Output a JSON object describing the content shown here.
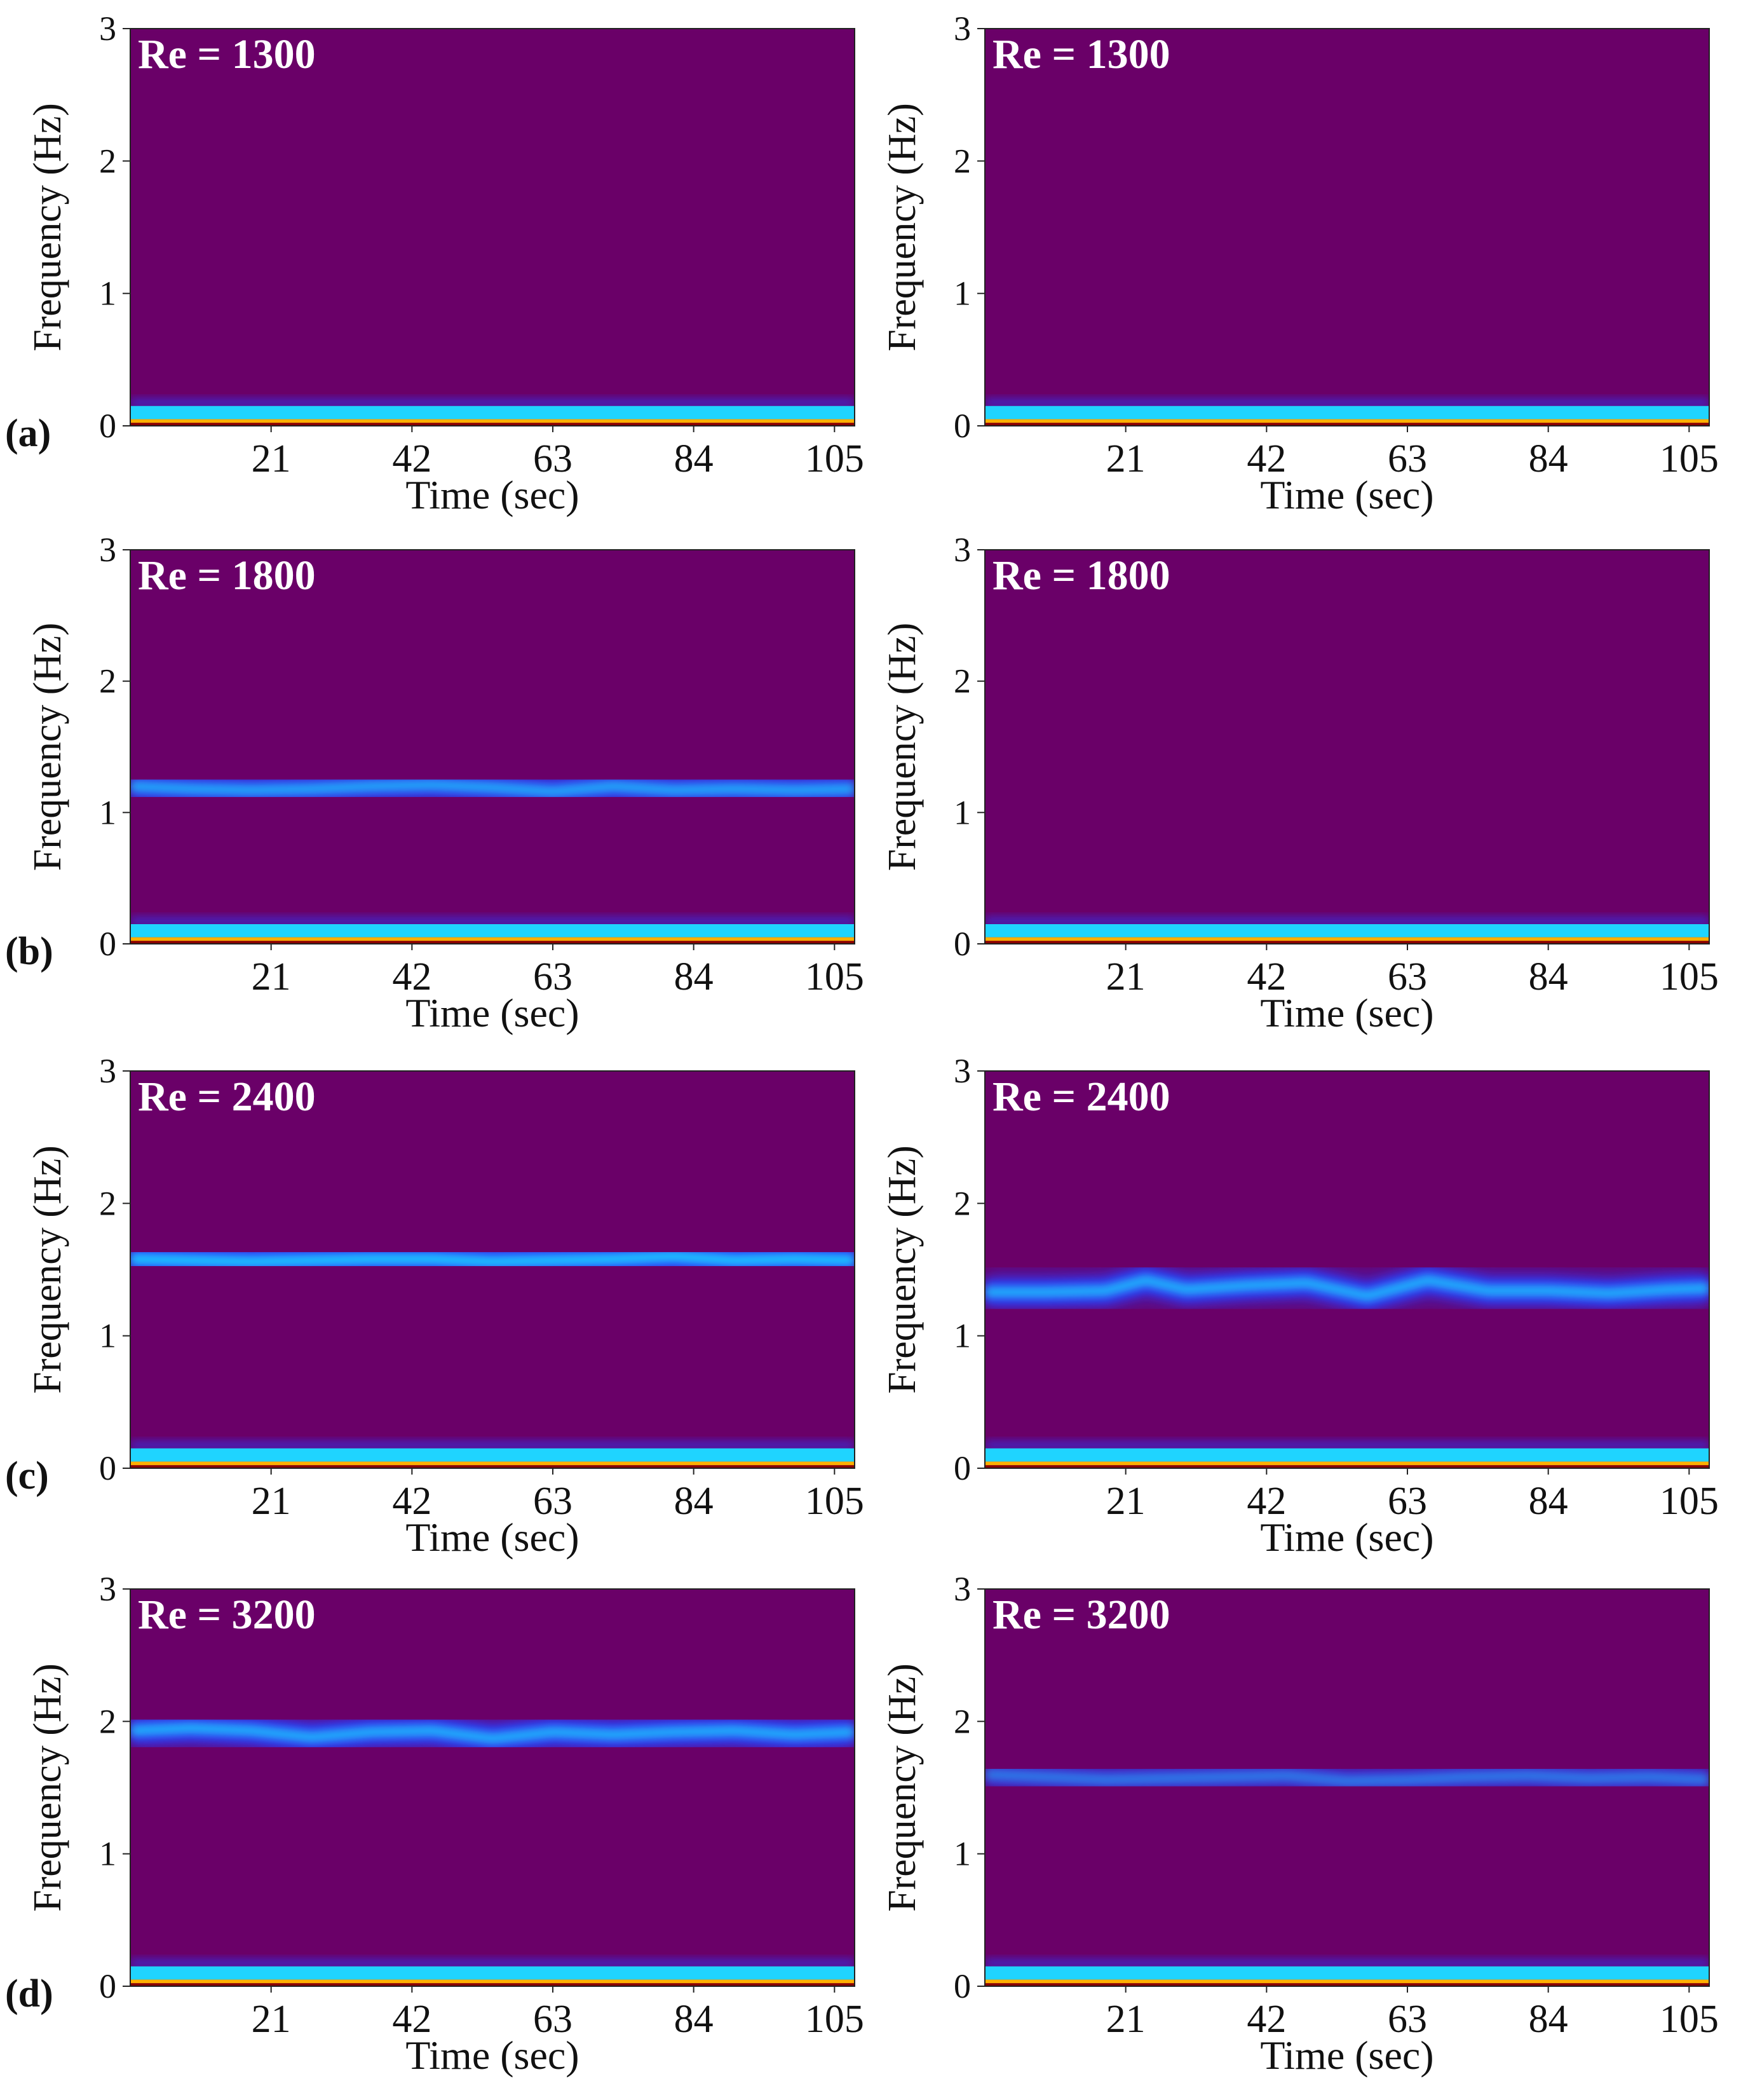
{
  "figure": {
    "title": "",
    "row_labels": [
      "(a)",
      "(b)",
      "(c)",
      "(d)"
    ],
    "colors": {
      "background": "#6a0068",
      "band_core": "#1fd4ff",
      "band_edge": "#2a3cff",
      "low_freq_hot": "#ffb000",
      "low_freq_dark": "#8a0000"
    }
  },
  "chart_data": [
    {
      "type": "heatmap",
      "row": "(a)",
      "column": "left",
      "annotation": "Re = 1300",
      "xlabel": "Time (sec)",
      "ylabel": "Frequency (Hz)",
      "xlim": [
        0,
        108
      ],
      "ylim": [
        0,
        3
      ],
      "xticks": [
        21,
        42,
        63,
        84,
        105
      ],
      "yticks": [
        0,
        1,
        2,
        3
      ],
      "low_freq_band_hz": [
        0.05,
        0.15
      ],
      "band": null
    },
    {
      "type": "heatmap",
      "row": "(a)",
      "column": "right",
      "annotation": "Re = 1300",
      "xlabel": "Time (sec)",
      "ylabel": "Frequency (Hz)",
      "xlim": [
        0,
        108
      ],
      "ylim": [
        0,
        3
      ],
      "xticks": [
        21,
        42,
        63,
        84,
        105
      ],
      "yticks": [
        0,
        1,
        2,
        3
      ],
      "low_freq_band_hz": [
        0.05,
        0.15
      ],
      "band": null
    },
    {
      "type": "heatmap",
      "row": "(b)",
      "column": "left",
      "annotation": "Re = 1800",
      "xlabel": "Time (sec)",
      "ylabel": "Frequency (Hz)",
      "xlim": [
        0,
        108
      ],
      "ylim": [
        0,
        3
      ],
      "xticks": [
        21,
        42,
        63,
        84,
        105
      ],
      "yticks": [
        0,
        1,
        2,
        3
      ],
      "low_freq_band_hz": [
        0.05,
        0.15
      ],
      "band": {
        "time": [
          0,
          9,
          18,
          27,
          36,
          45,
          54,
          63,
          72,
          81,
          90,
          99,
          108
        ],
        "freq": [
          1.2,
          1.18,
          1.17,
          1.18,
          1.2,
          1.21,
          1.19,
          1.16,
          1.2,
          1.17,
          1.18,
          1.17,
          1.18
        ],
        "halfwidth": 0.1,
        "strength": 0.8
      }
    },
    {
      "type": "heatmap",
      "row": "(b)",
      "column": "right",
      "annotation": "Re = 1800",
      "xlabel": "Time (sec)",
      "ylabel": "Frequency (Hz)",
      "xlim": [
        0,
        108
      ],
      "ylim": [
        0,
        3
      ],
      "xticks": [
        21,
        42,
        63,
        84,
        105
      ],
      "yticks": [
        0,
        1,
        2,
        3
      ],
      "low_freq_band_hz": [
        0.05,
        0.15
      ],
      "band": null
    },
    {
      "type": "heatmap",
      "row": "(c)",
      "column": "left",
      "annotation": "Re = 2400",
      "xlabel": "Time (sec)",
      "ylabel": "Frequency (Hz)",
      "xlim": [
        0,
        108
      ],
      "ylim": [
        0,
        3
      ],
      "xticks": [
        21,
        42,
        63,
        84,
        105
      ],
      "yticks": [
        0,
        1,
        2,
        3
      ],
      "low_freq_band_hz": [
        0.05,
        0.15
      ],
      "band": {
        "time": [
          0,
          9,
          18,
          27,
          36,
          45,
          54,
          63,
          72,
          81,
          90,
          99,
          108
        ],
        "freq": [
          1.58,
          1.57,
          1.56,
          1.57,
          1.58,
          1.58,
          1.56,
          1.57,
          1.58,
          1.6,
          1.57,
          1.58,
          1.57
        ],
        "halfwidth": 0.1,
        "strength": 1.0
      }
    },
    {
      "type": "heatmap",
      "row": "(c)",
      "column": "right",
      "annotation": "Re = 2400",
      "xlabel": "Time (sec)",
      "ylabel": "Frequency (Hz)",
      "xlim": [
        0,
        108
      ],
      "ylim": [
        0,
        3
      ],
      "xticks": [
        21,
        42,
        63,
        84,
        105
      ],
      "yticks": [
        0,
        1,
        2,
        3
      ],
      "low_freq_band_hz": [
        0.05,
        0.15
      ],
      "band": {
        "time": [
          0,
          9,
          18,
          24,
          30,
          39,
          48,
          57,
          66,
          75,
          84,
          93,
          102,
          108
        ],
        "freq": [
          1.33,
          1.33,
          1.34,
          1.42,
          1.35,
          1.38,
          1.4,
          1.3,
          1.42,
          1.34,
          1.34,
          1.32,
          1.35,
          1.36
        ],
        "halfwidth": 0.1,
        "strength": 0.85
      }
    },
    {
      "type": "heatmap",
      "row": "(d)",
      "column": "left",
      "annotation": "Re = 3200",
      "xlabel": "Time (sec)",
      "ylabel": "Frequency (Hz)",
      "xlim": [
        0,
        108
      ],
      "ylim": [
        0,
        3
      ],
      "xticks": [
        21,
        42,
        63,
        84,
        105
      ],
      "yticks": [
        0,
        1,
        2,
        3
      ],
      "low_freq_band_hz": [
        0.05,
        0.15
      ],
      "band": {
        "time": [
          0,
          9,
          18,
          27,
          36,
          45,
          54,
          63,
          72,
          81,
          90,
          99,
          108
        ],
        "freq": [
          1.93,
          1.95,
          1.93,
          1.88,
          1.92,
          1.93,
          1.87,
          1.92,
          1.9,
          1.92,
          1.93,
          1.9,
          1.92
        ],
        "halfwidth": 0.1,
        "strength": 0.85
      }
    },
    {
      "type": "heatmap",
      "row": "(d)",
      "column": "right",
      "annotation": "Re = 3200",
      "xlabel": "Time (sec)",
      "ylabel": "Frequency (Hz)",
      "xlim": [
        0,
        108
      ],
      "ylim": [
        0,
        3
      ],
      "xticks": [
        21,
        42,
        63,
        84,
        105
      ],
      "yticks": [
        0,
        1,
        2,
        3
      ],
      "low_freq_band_hz": [
        0.05,
        0.15
      ],
      "band": {
        "time": [
          0,
          9,
          18,
          27,
          36,
          45,
          54,
          63,
          72,
          81,
          90,
          99,
          108
        ],
        "freq": [
          1.6,
          1.58,
          1.56,
          1.57,
          1.58,
          1.59,
          1.55,
          1.56,
          1.58,
          1.59,
          1.57,
          1.58,
          1.56
        ],
        "halfwidth": 0.09,
        "strength": 0.55
      }
    }
  ]
}
